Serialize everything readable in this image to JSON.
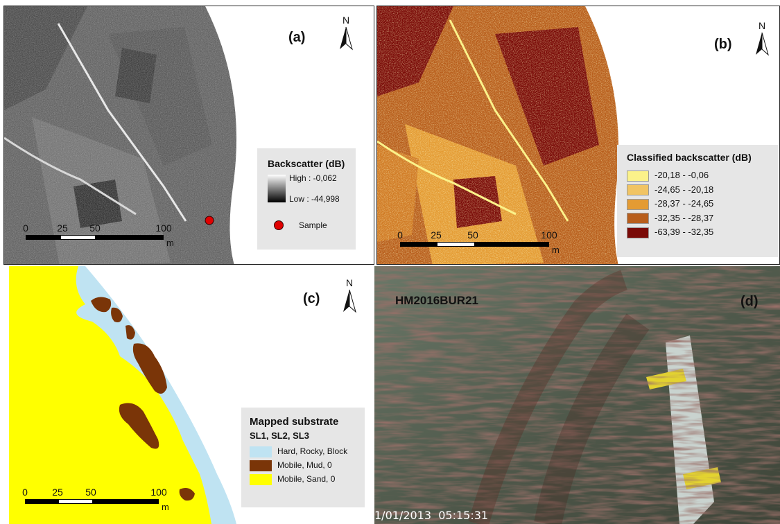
{
  "panel_a": {
    "label": "(a)",
    "north": "N",
    "legend": {
      "title": "Backscatter (dB)",
      "high": "High : -0,062",
      "low": "Low : -44,998",
      "sample": "Sample"
    },
    "scale": {
      "ticks": [
        "0",
        "25",
        "50",
        "100"
      ],
      "unit": "m"
    }
  },
  "panel_b": {
    "label": "(b)",
    "north": "N",
    "legend": {
      "title": "Classified backscatter (dB)",
      "classes": [
        {
          "label": "-20,18 - -0,06",
          "color": "#fbf28a"
        },
        {
          "label": "-24,65 - -20,18",
          "color": "#f1c463"
        },
        {
          "label": "-28,37 - -24,65",
          "color": "#e49b33"
        },
        {
          "label": "-32,35 - -28,37",
          "color": "#b85e1c"
        },
        {
          "label": "-63,39 - -32,35",
          "color": "#7a0a07"
        }
      ]
    },
    "scale": {
      "ticks": [
        "0",
        "25",
        "50",
        "100"
      ],
      "unit": "m"
    }
  },
  "panel_c": {
    "label": "(c)",
    "north": "N",
    "legend": {
      "title": "Mapped substrate",
      "subtitle": "SL1, SL2, SL3",
      "classes": [
        {
          "label": "Hard, Rocky, Block",
          "color": "#bfe3f2"
        },
        {
          "label": "Mobile, Mud, 0",
          "color": "#7a3508"
        },
        {
          "label": "Mobile, Sand, 0",
          "color": "#ffff00"
        }
      ]
    },
    "scale": {
      "ticks": [
        "0",
        "25",
        "50",
        "100"
      ],
      "unit": "m"
    }
  },
  "panel_d": {
    "label": "(d)",
    "station": "HM2016BUR21",
    "timestamp": "1/01/2013  05:15:31"
  }
}
